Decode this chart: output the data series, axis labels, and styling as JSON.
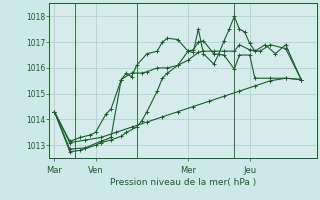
{
  "title": "",
  "xlabel": "Pression niveau de la mer( hPa )",
  "bg_color": "#cce8e8",
  "plot_bg_color": "#d6ecec",
  "grid_color": "#aacece",
  "line_color": "#1a5c2a",
  "dark_line_color": "#1a5c2a",
  "ylim": [
    1012.5,
    1018.5
  ],
  "yticks": [
    1013,
    1014,
    1015,
    1016,
    1017,
    1018
  ],
  "day_labels": [
    "Mar",
    "Ven",
    "Mer",
    "Jeu"
  ],
  "day_positions": [
    0.5,
    4.5,
    13.5,
    19.5
  ],
  "vline_positions": [
    2.5,
    8.5,
    18.0
  ],
  "xlim": [
    0,
    26
  ],
  "series": [
    {
      "x": [
        0.5,
        2,
        3.5,
        5,
        6.5,
        8,
        9.5,
        11,
        12.5,
        14,
        15.5,
        17,
        18.5,
        20,
        21.5,
        23,
        24.5
      ],
      "y": [
        1014.3,
        1013.1,
        1013.2,
        1013.3,
        1013.5,
        1013.7,
        1013.9,
        1014.1,
        1014.3,
        1014.5,
        1014.7,
        1014.9,
        1015.1,
        1015.3,
        1015.5,
        1015.6,
        1015.55
      ]
    },
    {
      "x": [
        0.5,
        2,
        3.5,
        5,
        6,
        7,
        8,
        9,
        9.5,
        10.5,
        11.5,
        12.5,
        13.5,
        14.5,
        15,
        16,
        17,
        18,
        18.5,
        19.5,
        20.5,
        21.5,
        23,
        24.5
      ],
      "y": [
        1014.3,
        1012.85,
        1012.9,
        1013.15,
        1013.3,
        1015.55,
        1015.8,
        1015.8,
        1015.85,
        1016.0,
        1016.0,
        1016.1,
        1016.3,
        1016.6,
        1016.65,
        1016.65,
        1016.65,
        1016.65,
        1016.9,
        1016.7,
        1016.65,
        1016.9,
        1016.75,
        1015.55
      ]
    },
    {
      "x": [
        0.5,
        2,
        3,
        4.5,
        5,
        6,
        7,
        7.5,
        8.5,
        9,
        9.5,
        10.5,
        11,
        11.5,
        12.5,
        13.5,
        14,
        14.5,
        15,
        16,
        17,
        18,
        18.5,
        19.5,
        20,
        21.5,
        23,
        24.5
      ],
      "y": [
        1014.3,
        1012.75,
        1012.8,
        1013.0,
        1013.1,
        1013.2,
        1013.35,
        1013.5,
        1013.7,
        1013.95,
        1014.3,
        1015.1,
        1015.6,
        1015.8,
        1016.1,
        1016.65,
        1016.7,
        1017.0,
        1017.05,
        1016.55,
        1016.5,
        1015.95,
        1016.5,
        1016.5,
        1015.6,
        1015.6,
        1015.6,
        1015.55
      ]
    },
    {
      "x": [
        0.5,
        2,
        3,
        4,
        4.5,
        5.5,
        6,
        7,
        7.5,
        8,
        8.5,
        9.5,
        10.5,
        11,
        11.5,
        12.5,
        13.5,
        14,
        14.5,
        15,
        16,
        16.5,
        17,
        17.5,
        18,
        18.5,
        19,
        19.5,
        20,
        21,
        22,
        23,
        24.5
      ],
      "y": [
        1014.3,
        1013.15,
        1013.3,
        1013.4,
        1013.5,
        1014.2,
        1014.4,
        1015.55,
        1015.8,
        1015.65,
        1016.1,
        1016.55,
        1016.65,
        1017.0,
        1017.15,
        1017.1,
        1016.65,
        1016.6,
        1017.5,
        1016.55,
        1016.15,
        1016.55,
        1017.05,
        1017.5,
        1018.0,
        1017.5,
        1017.4,
        1016.95,
        1016.65,
        1016.9,
        1016.55,
        1016.9,
        1015.55
      ]
    }
  ]
}
